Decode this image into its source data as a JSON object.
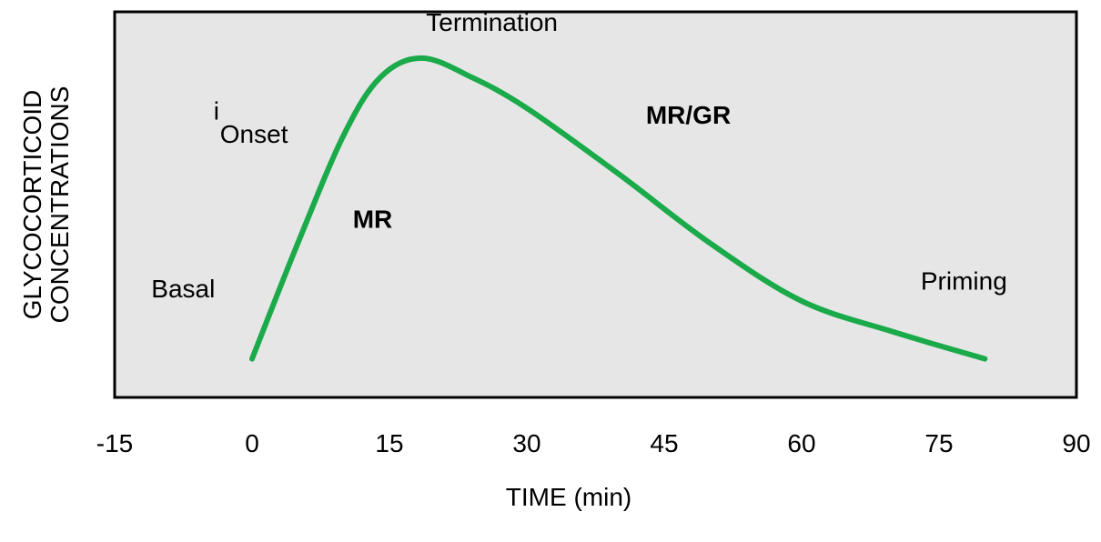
{
  "chart_data": {
    "type": "line",
    "title": "",
    "xlabel": "TIME (min)",
    "ylabel": [
      "GLYCOCORTICOID",
      "CONCENTRATIONS"
    ],
    "xlim": [
      -15,
      90
    ],
    "x_ticks": [
      "-15",
      "0",
      "15",
      "30",
      "45",
      "60",
      "75",
      "90"
    ],
    "ylim": [
      0,
      1
    ],
    "y_ticks_shown": false,
    "grid": false,
    "background_color": "#e6e6e6",
    "series": [
      {
        "color": "#1aaa4a",
        "points": [
          {
            "x": 0,
            "y": 0.1
          },
          {
            "x": 5,
            "y": 0.4
          },
          {
            "x": 10,
            "y": 0.68
          },
          {
            "x": 14,
            "y": 0.83
          },
          {
            "x": 18.5,
            "y": 0.88
          },
          {
            "x": 24,
            "y": 0.83
          },
          {
            "x": 30,
            "y": 0.75
          },
          {
            "x": 40,
            "y": 0.58
          },
          {
            "x": 50,
            "y": 0.4
          },
          {
            "x": 60,
            "y": 0.25
          },
          {
            "x": 70,
            "y": 0.17
          },
          {
            "x": 80,
            "y": 0.1
          }
        ]
      }
    ],
    "annotations": [
      {
        "text": "Basal",
        "x": -11,
        "y": 0.26,
        "color": "#000000",
        "bold": false
      },
      {
        "text": "i",
        "x": -4.2,
        "y": 0.72,
        "color": "#000000",
        "bold": false,
        "small": true
      },
      {
        "text": "Onset",
        "x": -3.5,
        "y": 0.66,
        "color": "#000000",
        "bold": false
      },
      {
        "text": "Termination",
        "x": 19,
        "y": 0.95,
        "color": "#000000",
        "bold": false
      },
      {
        "text": "MR",
        "x": 11,
        "y": 0.44,
        "color": "#1f77c4",
        "bold": true
      },
      {
        "text": "MR/GR",
        "x": 43,
        "y": 0.71,
        "color": "#1f77c4",
        "bold": true
      },
      {
        "text": "Priming",
        "x": 73,
        "y": 0.28,
        "color": "#000000",
        "bold": false
      }
    ]
  }
}
